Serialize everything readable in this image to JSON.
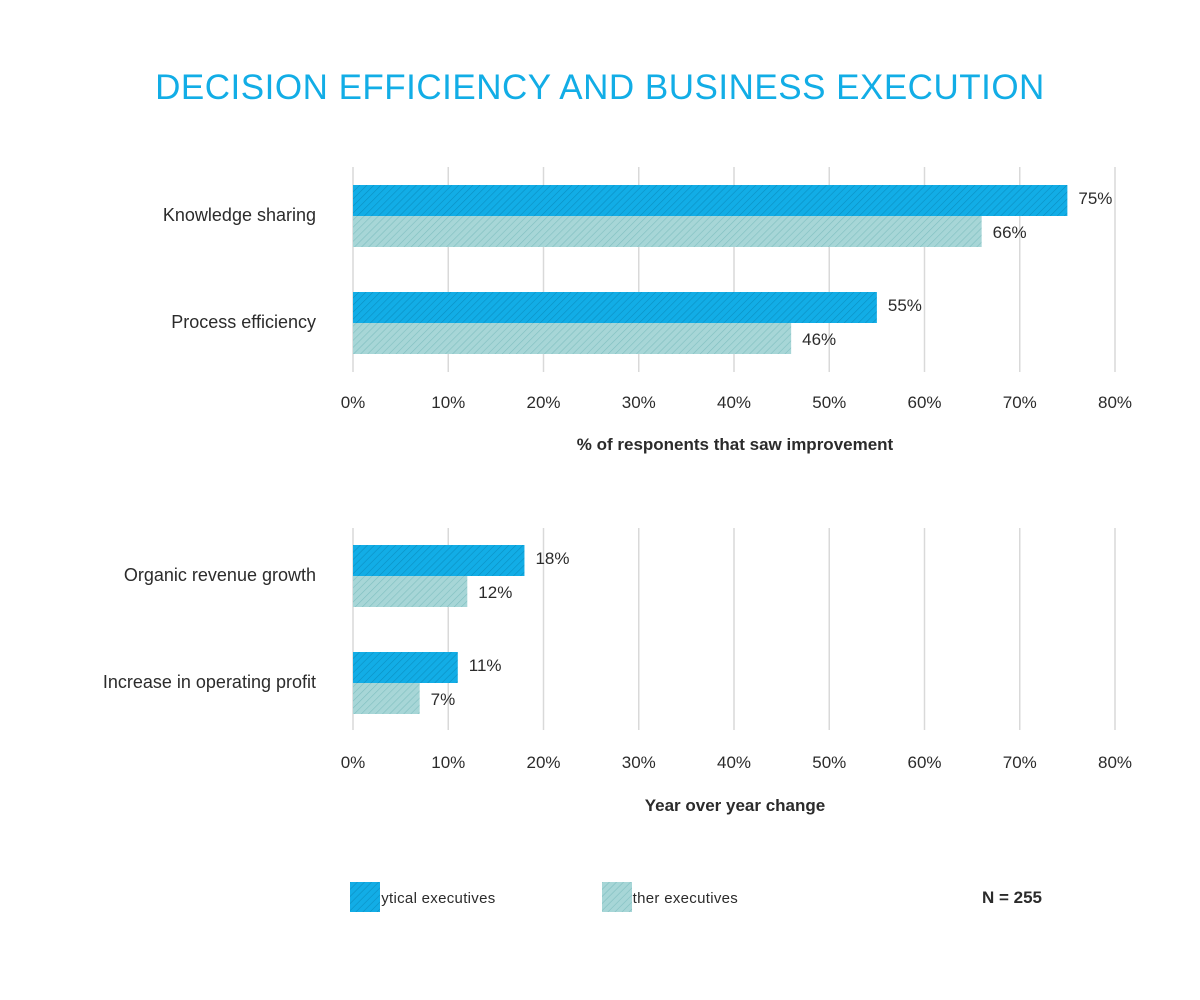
{
  "title": "DECISION EFFICIENCY AND BUSINESS EXECUTION",
  "colors": {
    "title": "#12ade6",
    "analytical": "#12ade6",
    "analytical_stripe": "#0a8fc2",
    "other": "#a7d6d7",
    "other_stripe": "#7fbfc0",
    "grid": "#d9d9d9",
    "text": "#2b2b2b"
  },
  "legend": {
    "items": [
      {
        "label": "Analytical executives"
      },
      {
        "label": "All other executives"
      }
    ],
    "note": "N = 255"
  },
  "chart_data": [
    {
      "type": "bar",
      "orientation": "horizontal",
      "categories": [
        "Knowledge sharing",
        "Process efficiency"
      ],
      "series": [
        {
          "name": "Analytical executives",
          "values": [
            75,
            55
          ],
          "labels": [
            "75%",
            "55%"
          ]
        },
        {
          "name": "All other executives",
          "values": [
            66,
            46
          ],
          "labels": [
            "66%",
            "46%"
          ]
        }
      ],
      "xlim": [
        0,
        80
      ],
      "xticks": [
        "0%",
        "10%",
        "20%",
        "30%",
        "40%",
        "50%",
        "60%",
        "70%",
        "80%"
      ],
      "xlabel": "% of responents that saw improvement",
      "grid": true
    },
    {
      "type": "bar",
      "orientation": "horizontal",
      "categories": [
        "Organic revenue growth",
        "Increase in operating profit"
      ],
      "series": [
        {
          "name": "Analytical executives",
          "values": [
            18,
            11
          ],
          "labels": [
            "18%",
            "11%"
          ]
        },
        {
          "name": "All other executives",
          "values": [
            12,
            7
          ],
          "labels": [
            "12%",
            "7%"
          ]
        }
      ],
      "xlim": [
        0,
        80
      ],
      "xticks": [
        "0%",
        "10%",
        "20%",
        "30%",
        "40%",
        "50%",
        "60%",
        "70%",
        "80%"
      ],
      "xlabel": "Year over year change",
      "grid": true
    }
  ]
}
